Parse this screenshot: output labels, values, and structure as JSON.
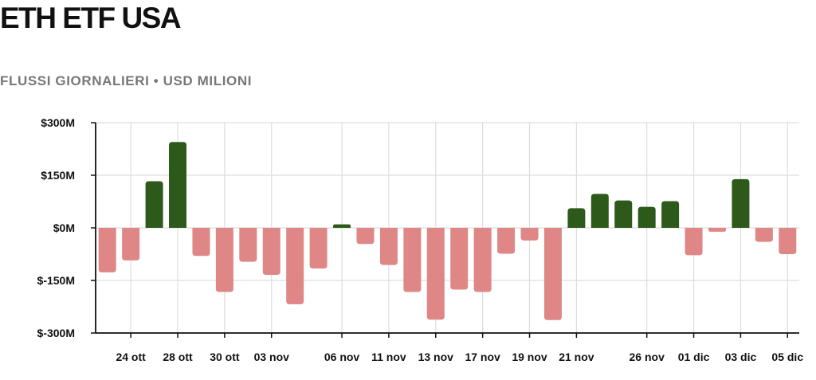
{
  "header": {
    "title": "ETH ETF USA",
    "subtitle": "FLUSSI GIORNALIERI • USD MILIONI"
  },
  "chart_data": {
    "type": "bar",
    "title": "ETH ETF USA",
    "subtitle": "FLUSSI GIORNALIERI • USD MILIONI",
    "xlabel": "",
    "ylabel": "",
    "ylim": [
      -300,
      300
    ],
    "y_ticks": [
      300,
      150,
      0,
      -150,
      -300
    ],
    "y_tick_labels": [
      "$300M",
      "$150M",
      "$0M",
      "$-150M",
      "$-300M"
    ],
    "grid": true,
    "colors": {
      "positive": "#2d5a1b",
      "negative": "#df8686",
      "grid": "#dddddd",
      "axis": "#111111"
    },
    "x_tick_labels": [
      {
        "label": "24 ott",
        "bar": 1.5
      },
      {
        "label": "28 ott",
        "bar": 3.5
      },
      {
        "label": "30 ott",
        "bar": 5.5
      },
      {
        "label": "03 nov",
        "bar": 7.5
      },
      {
        "label": "06 nov",
        "bar": 10.5
      },
      {
        "label": "11 nov",
        "bar": 12.5
      },
      {
        "label": "13 nov",
        "bar": 14.5
      },
      {
        "label": "17 nov",
        "bar": 16.5
      },
      {
        "label": "19 nov",
        "bar": 18.5
      },
      {
        "label": "21 nov",
        "bar": 20.5
      },
      {
        "label": "26 nov",
        "bar": 23.5
      },
      {
        "label": "01 dic",
        "bar": 25.5
      },
      {
        "label": "03 dic",
        "bar": 27.5
      },
      {
        "label": "05 dic",
        "bar": 29.5
      }
    ],
    "series": [
      {
        "name": "Flussi giornalieri",
        "values": [
          -127,
          -93,
          133,
          245,
          -80,
          -183,
          -97,
          -134,
          -218,
          -116,
          10,
          -46,
          -106,
          -183,
          -262,
          -176,
          -183,
          -74,
          -36,
          -263,
          56,
          97,
          78,
          60,
          76,
          -78,
          -11,
          139,
          -40,
          -75
        ]
      }
    ]
  }
}
